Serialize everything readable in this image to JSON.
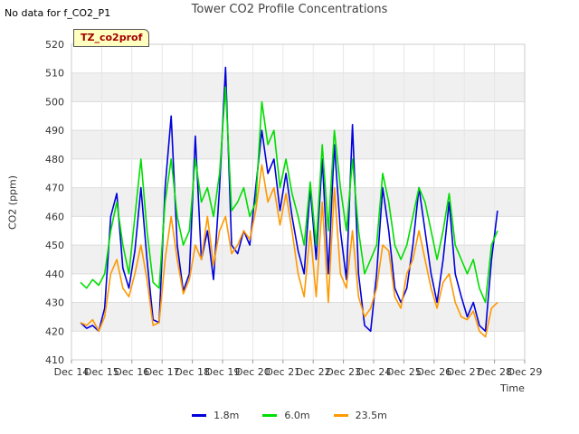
{
  "header": {
    "no_data_note": "No data for f_CO2_P1",
    "badge": "TZ_co2prof"
  },
  "chart_data": {
    "type": "line",
    "title": "Tower CO2 Profile Concentrations",
    "xlabel": "Time",
    "ylabel": "CO2 (ppm)",
    "ylim": [
      410,
      520
    ],
    "yticks": [
      410,
      420,
      430,
      440,
      450,
      460,
      470,
      480,
      490,
      500,
      510,
      520
    ],
    "xlim": [
      0,
      15
    ],
    "xticks": [
      0,
      1,
      2,
      3,
      4,
      5,
      6,
      7,
      8,
      9,
      10,
      11,
      12,
      13,
      14,
      15
    ],
    "xtick_labels": [
      "Dec 14",
      "Dec 15",
      "Dec 16",
      "Dec 17",
      "Dec 18",
      "Dec 19",
      "Dec 20",
      "Dec 21",
      "Dec 22",
      "Dec 23",
      "Dec 24",
      "Dec 25",
      "Dec 26",
      "Dec 27",
      "Dec 28",
      "Dec 29"
    ],
    "x_note": "x values are days since Dec 14 00:00",
    "grid": true,
    "legend_position": "bottom-center",
    "x": [
      0.3,
      0.5,
      0.7,
      0.9,
      1.1,
      1.3,
      1.5,
      1.7,
      1.9,
      2.1,
      2.3,
      2.5,
      2.7,
      2.9,
      3.1,
      3.3,
      3.5,
      3.7,
      3.9,
      4.1,
      4.3,
      4.5,
      4.7,
      4.9,
      5.1,
      5.3,
      5.5,
      5.7,
      5.9,
      6.1,
      6.3,
      6.5,
      6.7,
      6.9,
      7.1,
      7.3,
      7.5,
      7.7,
      7.9,
      8.1,
      8.3,
      8.5,
      8.7,
      8.9,
      9.1,
      9.3,
      9.5,
      9.7,
      9.9,
      10.1,
      10.3,
      10.5,
      10.7,
      10.9,
      11.1,
      11.3,
      11.5,
      11.7,
      11.9,
      12.1,
      12.3,
      12.5,
      12.7,
      12.9,
      13.1,
      13.3,
      13.5,
      13.7,
      13.9,
      14.1
    ],
    "series": [
      {
        "name": "1.8m",
        "color": "#0000dd",
        "values": [
          423,
          421,
          422,
          420,
          428,
          460,
          468,
          442,
          435,
          448,
          470,
          445,
          424,
          423,
          470,
          495,
          450,
          434,
          440,
          488,
          445,
          455,
          438,
          470,
          512,
          450,
          447,
          455,
          450,
          470,
          490,
          475,
          480,
          462,
          475,
          460,
          448,
          440,
          470,
          445,
          480,
          440,
          485,
          455,
          438,
          492,
          440,
          422,
          420,
          440,
          470,
          455,
          435,
          430,
          435,
          450,
          470,
          455,
          440,
          430,
          445,
          465,
          440,
          432,
          425,
          430,
          422,
          420,
          445,
          462
        ]
      },
      {
        "name": "6.0m",
        "color": "#00dd00",
        "values": [
          437,
          435,
          438,
          436,
          440,
          455,
          465,
          450,
          440,
          460,
          480,
          455,
          437,
          435,
          465,
          480,
          460,
          450,
          455,
          480,
          465,
          470,
          460,
          475,
          505,
          462,
          465,
          470,
          460,
          465,
          500,
          485,
          490,
          470,
          480,
          468,
          460,
          450,
          472,
          450,
          485,
          455,
          490,
          470,
          455,
          480,
          455,
          440,
          445,
          450,
          475,
          465,
          450,
          445,
          450,
          460,
          470,
          465,
          455,
          445,
          455,
          468,
          450,
          445,
          440,
          445,
          435,
          430,
          450,
          455
        ]
      },
      {
        "name": "23.5m",
        "color": "#ff9900",
        "values": [
          423,
          422,
          424,
          420,
          425,
          440,
          445,
          435,
          432,
          440,
          450,
          438,
          422,
          423,
          445,
          460,
          445,
          433,
          438,
          450,
          445,
          460,
          443,
          455,
          460,
          447,
          450,
          455,
          452,
          462,
          478,
          465,
          470,
          457,
          468,
          455,
          440,
          432,
          455,
          432,
          465,
          430,
          470,
          440,
          435,
          455,
          432,
          425,
          428,
          435,
          450,
          448,
          432,
          428,
          440,
          445,
          455,
          445,
          435,
          428,
          437,
          440,
          430,
          425,
          424,
          427,
          420,
          418,
          428,
          430
        ]
      }
    ]
  }
}
